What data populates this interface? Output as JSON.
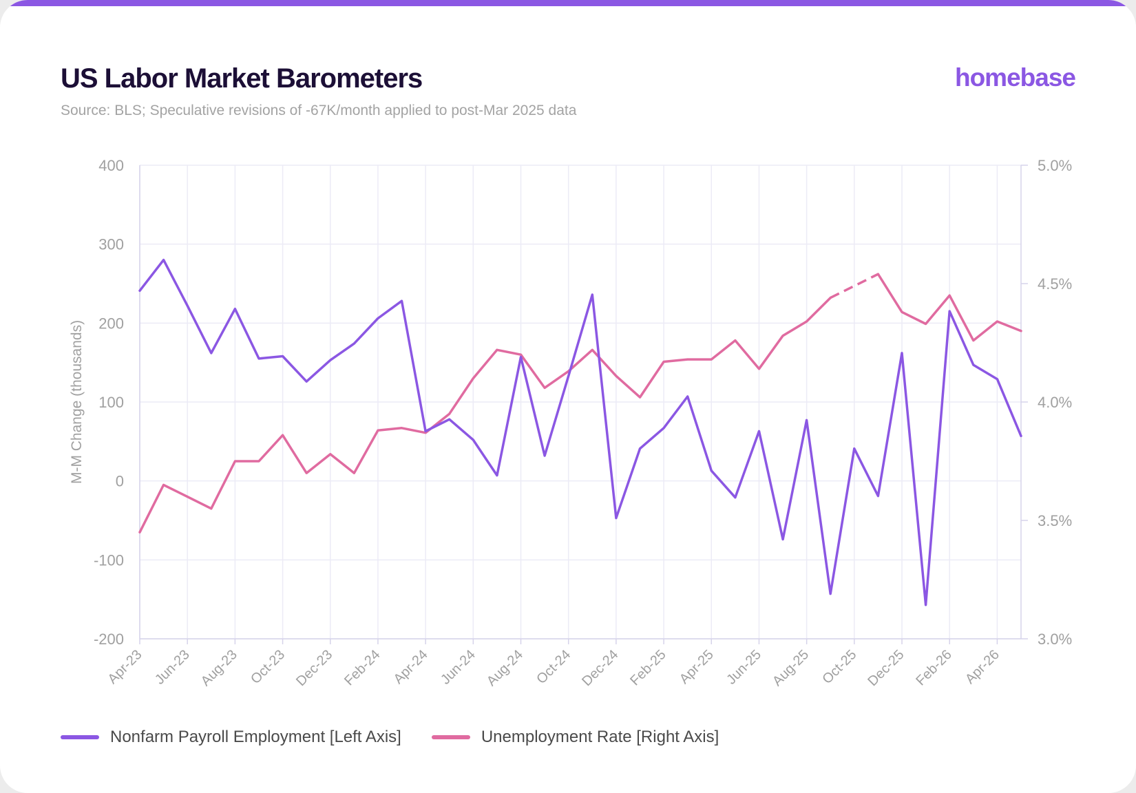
{
  "header": {
    "title": "US Labor Market Barometers",
    "subtitle": "Source: BLS; Speculative revisions of -67K/month applied to post-Mar 2025 data",
    "brand": "homebase"
  },
  "colors": {
    "accent_bar": "#8b57e3",
    "payroll": "#8b57e3",
    "unemployment": "#e06ba0",
    "grid": "#ecebf6",
    "axis_text": "#a0a0a0"
  },
  "chart_data": {
    "type": "line",
    "ylabel": "M-M Change (thousands)",
    "ylim": [
      -200,
      400
    ],
    "y_ticks": [
      "400",
      "300",
      "200",
      "100",
      "0",
      "-100",
      "-200"
    ],
    "y2lim": [
      3.0,
      5.0
    ],
    "y2_ticks": [
      "5.0%",
      "4.5%",
      "4.0%",
      "3.5%",
      "3.0%"
    ],
    "x_tick_labels": [
      "Apr-23",
      "Jun-23",
      "Aug-23",
      "Oct-23",
      "Dec-23",
      "Feb-24",
      "Apr-24",
      "Jun-24",
      "Aug-24",
      "Oct-24",
      "Dec-24",
      "Feb-25",
      "Apr-25",
      "Jun-25",
      "Aug-25",
      "Oct-25",
      "Dec-25",
      "Feb-26",
      "Apr-26"
    ],
    "categories": [
      "Apr-23",
      "May-23",
      "Jun-23",
      "Jul-23",
      "Aug-23",
      "Sep-23",
      "Oct-23",
      "Nov-23",
      "Dec-23",
      "Jan-24",
      "Feb-24",
      "Mar-24",
      "Apr-24",
      "May-24",
      "Jun-24",
      "Jul-24",
      "Aug-24",
      "Sep-24",
      "Oct-24",
      "Nov-24",
      "Dec-24",
      "Jan-25",
      "Feb-25",
      "Mar-25",
      "Apr-25",
      "May-25",
      "Jun-25",
      "Jul-25",
      "Aug-25",
      "Sep-25",
      "Oct-25",
      "Nov-25",
      "Dec-25",
      "Jan-26",
      "Feb-26",
      "Mar-26",
      "Apr-26",
      "May-26"
    ],
    "grid": true,
    "legend_position": "bottom-left",
    "series": [
      {
        "name": "Nonfarm Payroll Employment [Left Axis]",
        "axis": "left",
        "values": [
          241,
          280,
          222,
          162,
          218,
          155,
          158,
          126,
          153,
          174,
          206,
          228,
          63,
          78,
          52,
          7,
          157,
          32,
          133,
          236,
          -47,
          41,
          67,
          107,
          13,
          -21,
          63,
          -74,
          77,
          -143,
          41,
          -19,
          162,
          -157,
          215,
          147,
          129,
          57
        ]
      },
      {
        "name": "Unemployment Rate [Right Axis]",
        "axis": "right",
        "values": [
          3.45,
          3.65,
          3.6,
          3.55,
          3.75,
          3.75,
          3.86,
          3.7,
          3.78,
          3.7,
          3.88,
          3.89,
          3.87,
          3.95,
          4.1,
          4.22,
          4.2,
          4.06,
          4.13,
          4.22,
          4.11,
          4.02,
          4.17,
          4.18,
          4.18,
          4.26,
          4.14,
          4.28,
          4.34,
          4.44,
          4.49,
          4.54,
          4.38,
          4.33,
          4.45,
          4.26,
          4.34,
          4.3
        ],
        "dashed_range": [
          "Sep-25",
          "Nov-25"
        ]
      }
    ]
  }
}
